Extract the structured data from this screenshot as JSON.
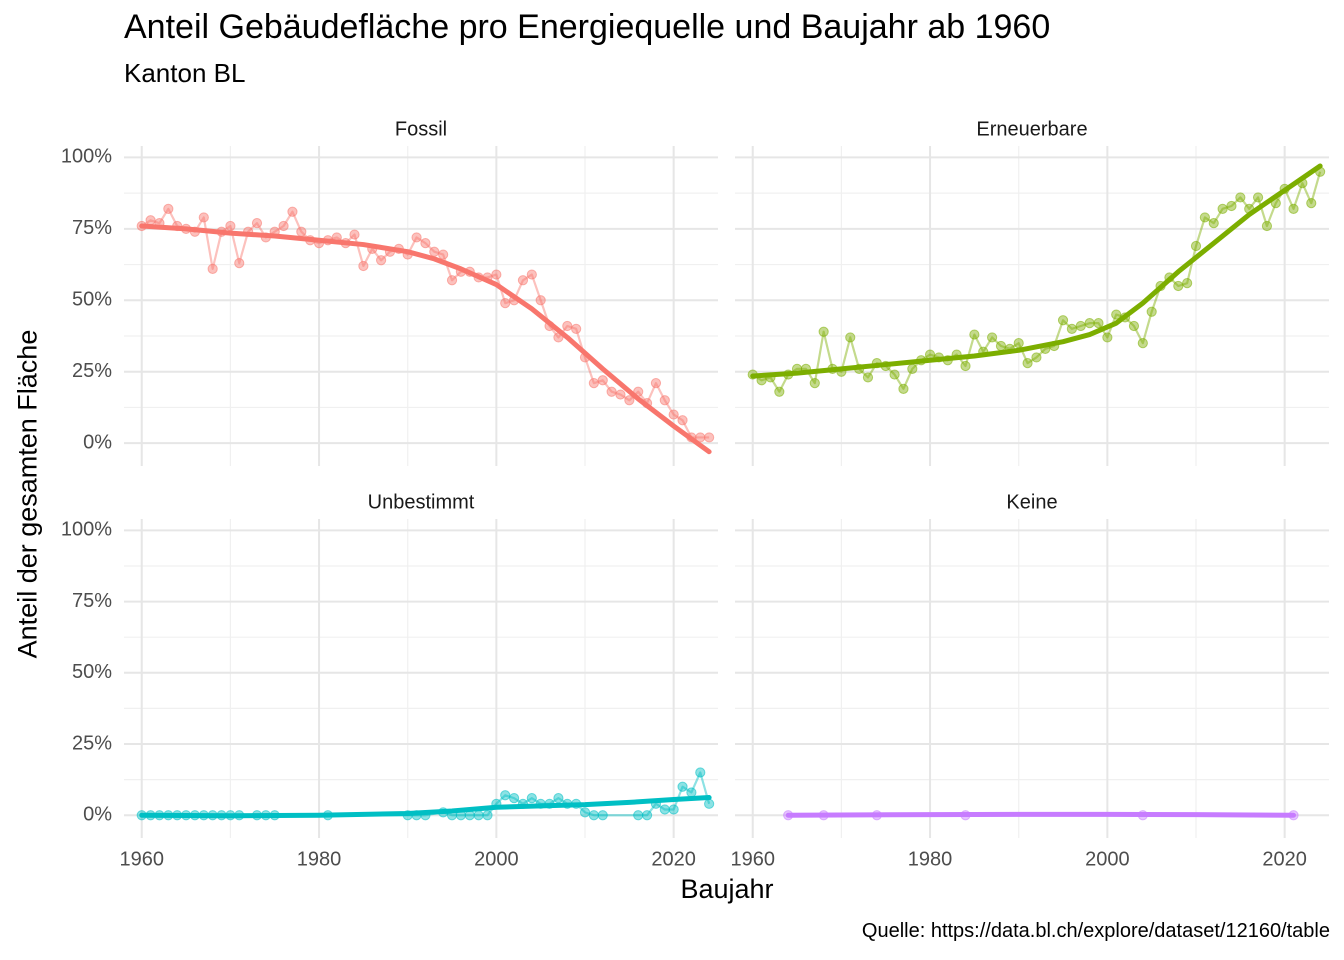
{
  "chart_data": {
    "type": "line",
    "title": "Anteil Gebäudefläche pro Energiequelle und Baujahr ab 1960",
    "subtitle": "Kanton BL",
    "xlabel": "Baujahr",
    "ylabel": "Anteil der gesamten Fläche",
    "caption": "Quelle: https://data.bl.ch/explore/dataset/12160/table",
    "xlim": [
      1958,
      2025
    ],
    "ylim": [
      -0.08,
      1.04
    ],
    "x_ticks": [
      1960,
      1980,
      2000,
      2020
    ],
    "x_tick_labels": [
      "1960",
      "1980",
      "2000",
      "2020"
    ],
    "y_ticks": [
      0,
      0.25,
      0.5,
      0.75,
      1.0
    ],
    "y_tick_labels": [
      "0%",
      "25%",
      "50%",
      "75%",
      "100%"
    ],
    "layout": "2x2 facets, shared axes",
    "grid": true,
    "legend": "none",
    "panels": [
      {
        "name": "Fossil",
        "color": "#F8766D",
        "x": [
          1960,
          1961,
          1962,
          1963,
          1964,
          1965,
          1966,
          1967,
          1968,
          1969,
          1970,
          1971,
          1972,
          1973,
          1974,
          1975,
          1976,
          1977,
          1978,
          1979,
          1980,
          1981,
          1982,
          1983,
          1984,
          1985,
          1986,
          1987,
          1988,
          1989,
          1990,
          1991,
          1992,
          1993,
          1994,
          1995,
          1996,
          1997,
          1998,
          1999,
          2000,
          2001,
          2002,
          2003,
          2004,
          2005,
          2006,
          2007,
          2008,
          2009,
          2010,
          2011,
          2012,
          2013,
          2014,
          2015,
          2016,
          2017,
          2018,
          2019,
          2020,
          2021,
          2022,
          2023,
          2024
        ],
        "y": [
          0.76,
          0.78,
          0.77,
          0.82,
          0.76,
          0.75,
          0.74,
          0.79,
          0.61,
          0.74,
          0.76,
          0.63,
          0.74,
          0.77,
          0.72,
          0.74,
          0.76,
          0.81,
          0.74,
          0.71,
          0.7,
          0.71,
          0.72,
          0.7,
          0.73,
          0.62,
          0.68,
          0.64,
          0.67,
          0.68,
          0.66,
          0.72,
          0.7,
          0.67,
          0.66,
          0.57,
          0.6,
          0.6,
          0.58,
          0.58,
          0.59,
          0.49,
          0.5,
          0.57,
          0.59,
          0.5,
          0.41,
          0.37,
          0.41,
          0.4,
          0.3,
          0.21,
          0.22,
          0.18,
          0.17,
          0.15,
          0.18,
          0.14,
          0.21,
          0.15,
          0.1,
          0.08,
          0.02,
          0.02,
          0.02
        ],
        "trend_x": [
          1960,
          1965,
          1970,
          1975,
          1980,
          1985,
          1990,
          1993,
          1996,
          2000,
          2004,
          2008,
          2012,
          2016,
          2020,
          2024
        ],
        "trend_y": [
          0.76,
          0.75,
          0.735,
          0.725,
          0.71,
          0.695,
          0.67,
          0.645,
          0.61,
          0.555,
          0.47,
          0.37,
          0.26,
          0.155,
          0.06,
          -0.03
        ]
      },
      {
        "name": "Erneuerbare",
        "color": "#7CAE00",
        "x": [
          1960,
          1961,
          1962,
          1963,
          1964,
          1965,
          1966,
          1967,
          1968,
          1969,
          1970,
          1971,
          1972,
          1973,
          1974,
          1975,
          1976,
          1977,
          1978,
          1979,
          1980,
          1981,
          1982,
          1983,
          1984,
          1985,
          1986,
          1987,
          1988,
          1989,
          1990,
          1991,
          1992,
          1993,
          1994,
          1995,
          1996,
          1997,
          1998,
          1999,
          2000,
          2001,
          2002,
          2003,
          2004,
          2005,
          2006,
          2007,
          2008,
          2009,
          2010,
          2011,
          2012,
          2013,
          2014,
          2015,
          2016,
          2017,
          2018,
          2019,
          2020,
          2021,
          2022,
          2023,
          2024
        ],
        "y": [
          0.24,
          0.22,
          0.23,
          0.18,
          0.24,
          0.26,
          0.26,
          0.21,
          0.39,
          0.26,
          0.25,
          0.37,
          0.26,
          0.23,
          0.28,
          0.27,
          0.24,
          0.19,
          0.26,
          0.29,
          0.31,
          0.3,
          0.29,
          0.31,
          0.27,
          0.38,
          0.32,
          0.37,
          0.34,
          0.33,
          0.35,
          0.28,
          0.3,
          0.33,
          0.34,
          0.43,
          0.4,
          0.41,
          0.42,
          0.42,
          0.37,
          0.45,
          0.44,
          0.41,
          0.35,
          0.46,
          0.55,
          0.58,
          0.55,
          0.56,
          0.69,
          0.79,
          0.77,
          0.82,
          0.83,
          0.86,
          0.82,
          0.86,
          0.76,
          0.84,
          0.89,
          0.82,
          0.91,
          0.84,
          0.95
        ],
        "trend_x": [
          1960,
          1965,
          1970,
          1975,
          1980,
          1985,
          1990,
          1995,
          1998,
          2001,
          2004,
          2008,
          2012,
          2016,
          2020,
          2024
        ],
        "trend_y": [
          0.235,
          0.245,
          0.26,
          0.275,
          0.29,
          0.305,
          0.325,
          0.355,
          0.38,
          0.42,
          0.49,
          0.6,
          0.7,
          0.8,
          0.885,
          0.97
        ]
      },
      {
        "name": "Unbestimmt",
        "color": "#00BFC4",
        "x": [
          1960,
          1961,
          1962,
          1963,
          1964,
          1965,
          1966,
          1967,
          1968,
          1969,
          1970,
          1971,
          1973,
          1974,
          1975,
          1981,
          1990,
          1991,
          1992,
          1994,
          1995,
          1996,
          1997,
          1998,
          1999,
          2000,
          2001,
          2002,
          2003,
          2004,
          2005,
          2006,
          2007,
          2008,
          2009,
          2010,
          2011,
          2012,
          2016,
          2017,
          2018,
          2019,
          2020,
          2021,
          2022,
          2023,
          2024
        ],
        "y": [
          0,
          0,
          0,
          0,
          0,
          0,
          0,
          0,
          0,
          0,
          0,
          0,
          0,
          0,
          0,
          0,
          0,
          0,
          0,
          0.01,
          0,
          0,
          0,
          0,
          0,
          0.04,
          0.07,
          0.06,
          0.04,
          0.06,
          0.04,
          0.04,
          0.06,
          0.04,
          0.04,
          0.01,
          0,
          0,
          0,
          0,
          0.04,
          0.02,
          0.02,
          0.1,
          0.08,
          0.15,
          0.04
        ],
        "trend_x": [
          1960,
          1970,
          1980,
          1990,
          1995,
          2000,
          2005,
          2010,
          2015,
          2020,
          2024
        ],
        "trend_y": [
          0.0,
          -0.002,
          0.0,
          0.006,
          0.015,
          0.028,
          0.033,
          0.037,
          0.045,
          0.055,
          0.062
        ]
      },
      {
        "name": "Keine",
        "color": "#C77CFF",
        "x": [
          1964,
          1968,
          1974,
          1984,
          2004,
          2021
        ],
        "y": [
          0,
          0,
          0,
          0,
          0,
          0
        ],
        "trend_x": [
          1964,
          1980,
          1990,
          2000,
          2010,
          2021
        ],
        "trend_y": [
          0.0,
          0.002,
          0.003,
          0.003,
          0.002,
          0.0
        ]
      }
    ]
  }
}
